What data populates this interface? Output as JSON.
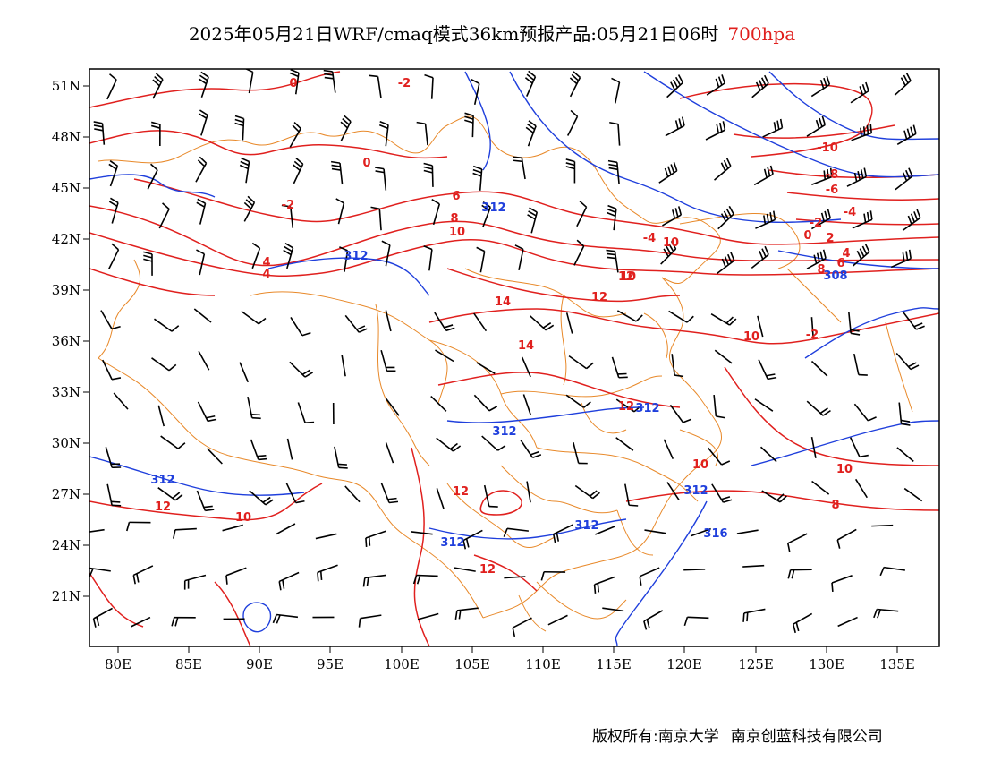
{
  "title": {
    "main": "2025年05月21日WRF/cmaq模式36km预报产品:05月21日06时",
    "level": "700hpa"
  },
  "axes": {
    "lon_ticks": [
      "80E",
      "85E",
      "90E",
      "95E",
      "100E",
      "105E",
      "110E",
      "115E",
      "120E",
      "125E",
      "130E",
      "135E"
    ],
    "lat_ticks": [
      "51N",
      "48N",
      "45N",
      "42N",
      "39N",
      "36N",
      "33N",
      "30N",
      "27N",
      "24N",
      "21N"
    ]
  },
  "colors": {
    "temperature": "#e0201e",
    "height": "#1f3fdc",
    "border": "#e8892a",
    "wind": "#000000"
  },
  "contour_labels": {
    "temperature": [
      "0",
      "-2",
      "0",
      "-2",
      "4",
      "6",
      "8",
      "10",
      "-4",
      "-2",
      "4",
      "14",
      "14",
      "12",
      "10",
      "12",
      "12",
      "12",
      "12",
      "10",
      "10",
      "-10",
      "-8",
      "-6",
      "-4",
      "-2",
      "0",
      "2",
      "4",
      "6",
      "8",
      "10",
      "12",
      "10",
      "8",
      "10"
    ],
    "height": [
      "312",
      "312",
      "312",
      "312",
      "312",
      "312",
      "312",
      "312",
      "316",
      "308"
    ]
  },
  "footer": {
    "left": "版权所有:南京大学",
    "right": "南京创蓝科技有限公司"
  },
  "chart_data": {
    "type": "map",
    "title": "2025年05月21日WRF/cmaq模式36km预报产品:05月21日06时 700hpa",
    "xlim": [
      "78E",
      "138E"
    ],
    "ylim": [
      "18N",
      "52N"
    ],
    "grid": false
  }
}
